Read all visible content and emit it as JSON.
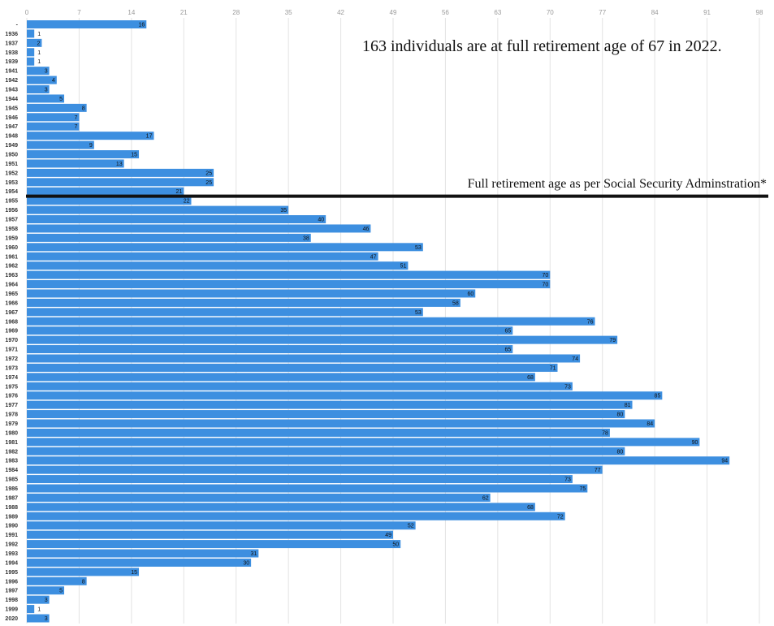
{
  "chart_data": {
    "type": "bar",
    "orientation": "horizontal",
    "categories": [
      "-",
      "1936",
      "1937",
      "1938",
      "1939",
      "1941",
      "1942",
      "1943",
      "1944",
      "1945",
      "1946",
      "1947",
      "1948",
      "1949",
      "1950",
      "1951",
      "1952",
      "1953",
      "1954",
      "1955",
      "1956",
      "1957",
      "1958",
      "1959",
      "1960",
      "1961",
      "1962",
      "1963",
      "1964",
      "1965",
      "1966",
      "1967",
      "1968",
      "1969",
      "1970",
      "1971",
      "1972",
      "1973",
      "1974",
      "1975",
      "1976",
      "1977",
      "1978",
      "1979",
      "1980",
      "1981",
      "1982",
      "1983",
      "1984",
      "1985",
      "1986",
      "1987",
      "1988",
      "1989",
      "1990",
      "1991",
      "1992",
      "1993",
      "1994",
      "1995",
      "1996",
      "1997",
      "1998",
      "1999",
      "2020"
    ],
    "values": [
      16,
      1,
      2,
      1,
      1,
      3,
      4,
      3,
      5,
      8,
      7,
      7,
      17,
      9,
      15,
      13,
      25,
      25,
      21,
      22,
      35,
      40,
      46,
      38,
      53,
      47,
      51,
      70,
      70,
      60,
      58,
      53,
      76,
      65,
      79,
      65,
      74,
      71,
      68,
      73,
      85,
      81,
      80,
      84,
      78,
      90,
      80,
      94,
      77,
      73,
      75,
      62,
      68,
      72,
      52,
      49,
      50,
      31,
      30,
      15,
      8,
      5,
      3,
      1,
      3
    ],
    "xticks": [
      0,
      7,
      14,
      21,
      28,
      35,
      42,
      49,
      56,
      63,
      70,
      77,
      84,
      91,
      98
    ],
    "xlim": [
      0,
      98
    ],
    "title": "",
    "xlabel": "",
    "ylabel": "",
    "grid": "vertical",
    "bar_color": "#3d8fe0",
    "annotations": {
      "top_note": "163 individuals are at full retirement age of 67 in 2022.",
      "line_label": "Full retirement age as per Social Security Adminstration*",
      "line_position_between": [
        "1954",
        "1955"
      ]
    }
  }
}
